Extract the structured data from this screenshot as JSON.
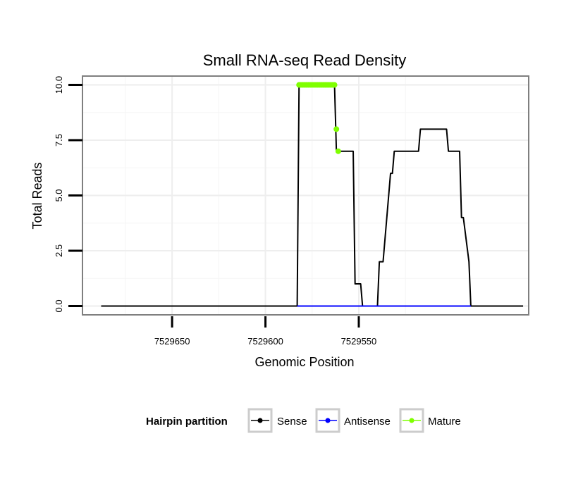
{
  "chart_data": {
    "type": "line",
    "title": "Small RNA-seq Read Density",
    "xlabel": "Genomic Position",
    "ylabel": "Total Reads",
    "x_reversed": true,
    "xlim": [
      7529698,
      7529459
    ],
    "ylim": [
      -0.4,
      10.4
    ],
    "x_ticks": [
      7529650,
      7529600,
      7529550
    ],
    "x_tick_labels": [
      "7529650",
      "7529600",
      "7529550"
    ],
    "y_ticks": [
      0,
      2.5,
      5,
      7.5,
      10
    ],
    "y_tick_labels": [
      "0.0",
      "2.5",
      "5.0",
      "7.5",
      "10.0"
    ],
    "grid": true,
    "legend": {
      "title": "Hairpin partition",
      "position": "bottom",
      "entries": [
        {
          "label": "Sense",
          "color": "#000000"
        },
        {
          "label": "Antisense",
          "color": "#0000ff"
        },
        {
          "label": "Mature",
          "color": "#7fff00"
        }
      ]
    },
    "series": [
      {
        "name": "Sense",
        "color": "#000000",
        "x": [
          7529688,
          7529583,
          7529582,
          7529563,
          7529562,
          7529553,
          7529552,
          7529549,
          7529548,
          7529546,
          7529545,
          7529540,
          7529539,
          7529538,
          7529537,
          7529536,
          7529535,
          7529534,
          7529533,
          7529532,
          7529531,
          7529529,
          7529528,
          7529525,
          7529524,
          7529518,
          7529517,
          7529508,
          7529507,
          7529503,
          7529502,
          7529500,
          7529499,
          7529497,
          7529496,
          7529495,
          7529494,
          7529491,
          7529490,
          7529462
        ],
        "y": [
          0,
          0,
          10,
          10,
          7,
          7,
          1,
          1,
          0,
          0,
          0,
          0,
          2,
          2,
          2,
          3,
          4,
          5,
          6,
          6,
          7,
          7,
          7,
          7,
          7,
          7,
          8,
          8,
          8,
          8,
          7,
          7,
          7,
          7,
          7,
          4,
          4,
          2,
          0,
          0
        ]
      },
      {
        "name": "Antisense",
        "color": "#0000ff",
        "x": [
          7529583,
          7529490
        ],
        "y": [
          0,
          0
        ]
      },
      {
        "name": "Mature",
        "color": "#7fff00",
        "x": [
          7529582,
          7529581,
          7529580,
          7529579,
          7529578,
          7529577,
          7529576,
          7529575,
          7529574,
          7529573,
          7529572,
          7529571,
          7529570,
          7529569,
          7529568,
          7529567,
          7529566,
          7529565,
          7529564,
          7529563,
          7529562,
          7529561
        ],
        "y": [
          10,
          10,
          10,
          10,
          10,
          10,
          10,
          10,
          10,
          10,
          10,
          10,
          10,
          10,
          10,
          10,
          10,
          10,
          10,
          10,
          8,
          7
        ]
      }
    ]
  }
}
